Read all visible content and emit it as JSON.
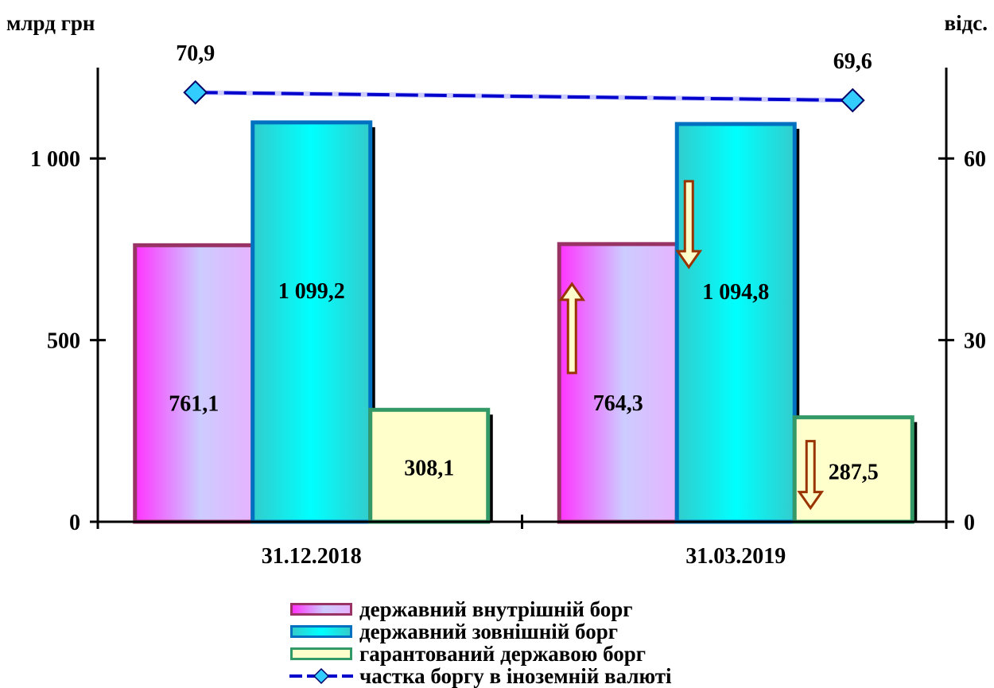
{
  "chart_data": {
    "type": "bar",
    "categories": [
      "31.12.2018",
      "31.03.2019"
    ],
    "ylabel_left": "млрд грн",
    "ylabel_right": "відс.",
    "ylim_left": [
      0,
      1250
    ],
    "yticks_left": [
      0,
      500,
      1000
    ],
    "ytick_labels_left": [
      "0",
      "500",
      "1 000"
    ],
    "ylim_right": [
      0,
      75
    ],
    "yticks_right": [
      0,
      30,
      60
    ],
    "ytick_labels_right": [
      "0",
      "30",
      "60"
    ],
    "series": [
      {
        "name": "державний внутрішній борг",
        "kind": "bar",
        "axis": "left",
        "values": [
          761.1,
          764.3
        ],
        "labels": [
          "761,1",
          "764,3"
        ],
        "fill_from": "#ff33ff",
        "fill_to": "#ccccff",
        "border": "#993366"
      },
      {
        "name": "державний зовнішній борг",
        "kind": "bar",
        "axis": "left",
        "values": [
          1099.2,
          1094.8
        ],
        "labels": [
          "1 099,2",
          "1 094,8"
        ],
        "fill_from": "#33cccc",
        "fill_to": "#00ffff",
        "border": "#0070c0"
      },
      {
        "name": "гарантований державою борг",
        "kind": "bar",
        "axis": "left",
        "values": [
          308.1,
          287.5
        ],
        "labels": [
          "308,1",
          "287,5"
        ],
        "fill_from": "#ffffcc",
        "fill_to": "#ffffcc",
        "border": "#339966"
      },
      {
        "name": "частка боргу в іноземній валюті",
        "kind": "line",
        "axis": "right",
        "values": [
          70.9,
          69.6
        ],
        "labels": [
          "70,9",
          "69,6"
        ],
        "color": "#0000cc",
        "marker": "#33ccff"
      }
    ],
    "annotations": [
      {
        "category": "31.03.2019",
        "series": "державний внутрішній борг",
        "direction": "up"
      },
      {
        "category": "31.03.2019",
        "series": "державний зовнішній борг",
        "direction": "down"
      },
      {
        "category": "31.03.2019",
        "series": "гарантований державою борг",
        "direction": "down"
      }
    ],
    "legend_position": "bottom"
  }
}
